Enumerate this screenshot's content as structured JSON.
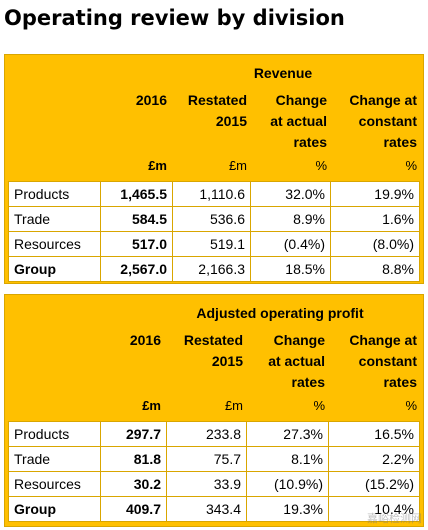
{
  "title": "Operating review by division",
  "tables": [
    {
      "group_title": "Revenue",
      "headers": {
        "c2016": "2016",
        "restated_line1": "Restated",
        "restated_line2": "2015",
        "change_actual_line1": "Change",
        "change_actual_line2": "at actual",
        "change_actual_line3": "rates",
        "change_constant_line1": "Change at",
        "change_constant_line2": "constant",
        "change_constant_line3": "rates"
      },
      "units": {
        "c2016": "£m",
        "restated": "£m",
        "change_actual": "%",
        "change_constant": "%"
      },
      "rows": [
        {
          "label": "Products",
          "v2016": "1,465.5",
          "restated": "1,110.6",
          "change_actual": "32.0%",
          "change_constant": "19.9%"
        },
        {
          "label": "Trade",
          "v2016": "584.5",
          "restated": "536.6",
          "change_actual": "8.9%",
          "change_constant": "1.6%"
        },
        {
          "label": "Resources",
          "v2016": "517.0",
          "restated": "519.1",
          "change_actual": "(0.4%)",
          "change_constant": "(8.0%)"
        },
        {
          "label": "Group",
          "v2016": "2,567.0",
          "restated": "2,166.3",
          "change_actual": "18.5%",
          "change_constant": "8.8%"
        }
      ]
    },
    {
      "group_title": "Adjusted operating profit",
      "headers": {
        "c2016": "2016",
        "restated_line1": "Restated",
        "restated_line2": "2015",
        "change_actual_line1": "Change",
        "change_actual_line2": "at actual",
        "change_actual_line3": "rates",
        "change_constant_line1": "Change at",
        "change_constant_line2": "constant",
        "change_constant_line3": "rates"
      },
      "units": {
        "c2016": "£m",
        "restated": "£m",
        "change_actual": "%",
        "change_constant": "%"
      },
      "rows": [
        {
          "label": "Products",
          "v2016": "297.7",
          "restated": "233.8",
          "change_actual": "27.3%",
          "change_constant": "16.5%"
        },
        {
          "label": "Trade",
          "v2016": "81.8",
          "restated": "75.7",
          "change_actual": "8.1%",
          "change_constant": "2.2%"
        },
        {
          "label": "Resources",
          "v2016": "30.2",
          "restated": "33.9",
          "change_actual": "(10.9%)",
          "change_constant": "(15.2%)"
        },
        {
          "label": "Group",
          "v2016": "409.7",
          "restated": "343.4",
          "change_actual": "19.3%",
          "change_constant": "10.4%"
        }
      ]
    }
  ],
  "watermark": "嘉峪检测网"
}
